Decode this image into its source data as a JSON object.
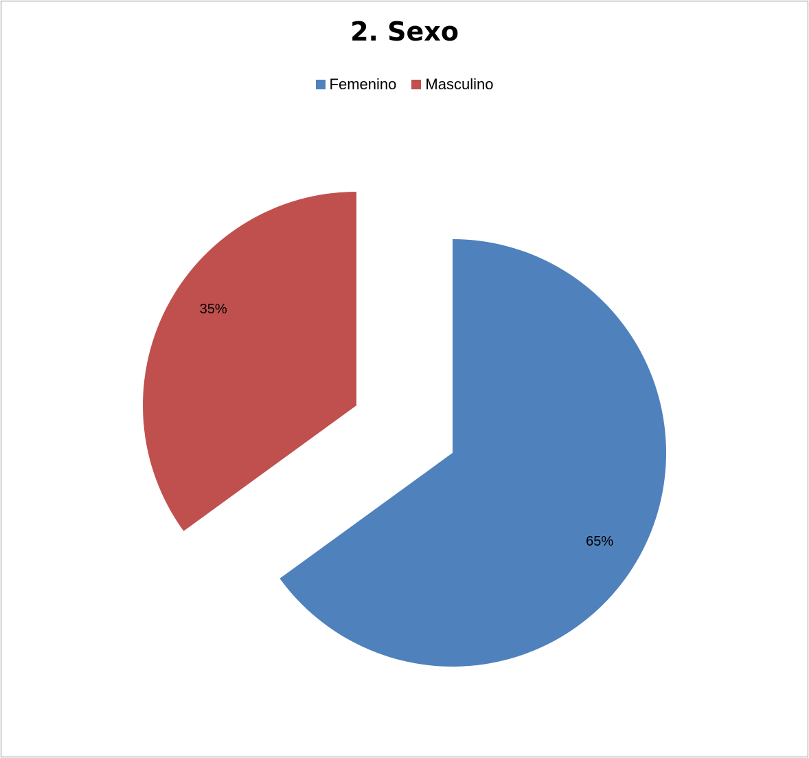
{
  "chart_data": {
    "type": "pie",
    "title": "2. Sexo",
    "legend_position": "top",
    "categories": [
      "Femenino",
      "Masculino"
    ],
    "values": [
      65,
      35
    ],
    "data_labels": [
      "65%",
      "35%"
    ],
    "colors": [
      "#4F81BD",
      "#C0504D"
    ],
    "exploded": true
  }
}
